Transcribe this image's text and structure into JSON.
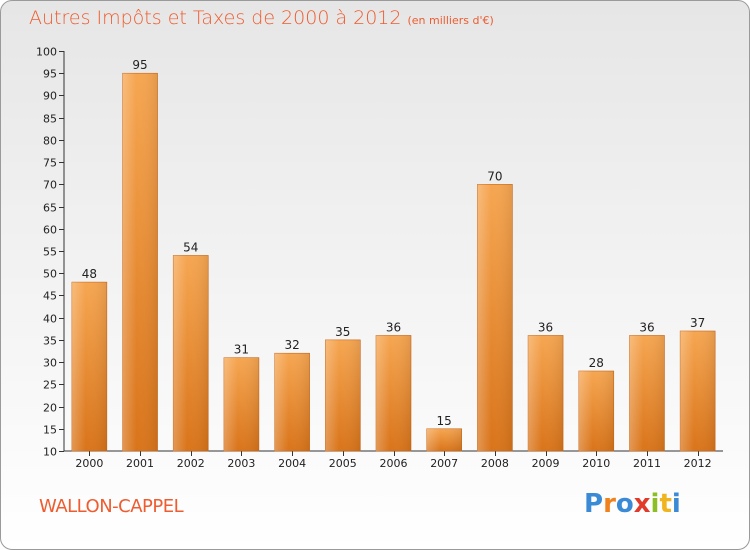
{
  "title": "Autres Impôts et Taxes de 2000 à 2012",
  "unit_note": "(en milliers d'€)",
  "location": "WALLON-CAPPEL",
  "logo": {
    "text": "Proxiti",
    "letters": [
      "P",
      "r",
      "o",
      "x",
      "i",
      "t",
      "i"
    ],
    "colors": [
      "#3a8ad6",
      "#f0821e",
      "#3a8ad6",
      "#e23a2a",
      "#8cbf26",
      "#f0b41e",
      "#3a8ad6"
    ]
  },
  "chart_data": {
    "type": "bar",
    "categories": [
      "2000",
      "2001",
      "2002",
      "2003",
      "2004",
      "2005",
      "2006",
      "2007",
      "2008",
      "2009",
      "2010",
      "2011",
      "2012"
    ],
    "values": [
      48,
      95,
      54,
      31,
      32,
      35,
      36,
      15,
      70,
      36,
      28,
      36,
      37
    ],
    "data_labels": [
      "48",
      "95",
      "54",
      "31",
      "32",
      "35",
      "36",
      "15",
      "70",
      "36",
      "28",
      "36",
      "37"
    ],
    "title": "Autres Impôts et Taxes de 2000 à 2012",
    "xlabel": "",
    "ylabel": "",
    "ylim": [
      10,
      100
    ],
    "yticks": [
      10,
      15,
      20,
      25,
      30,
      35,
      40,
      45,
      50,
      55,
      60,
      65,
      70,
      75,
      80,
      85,
      90,
      95,
      100
    ],
    "grid": false,
    "bar_color": "#f0912f"
  }
}
